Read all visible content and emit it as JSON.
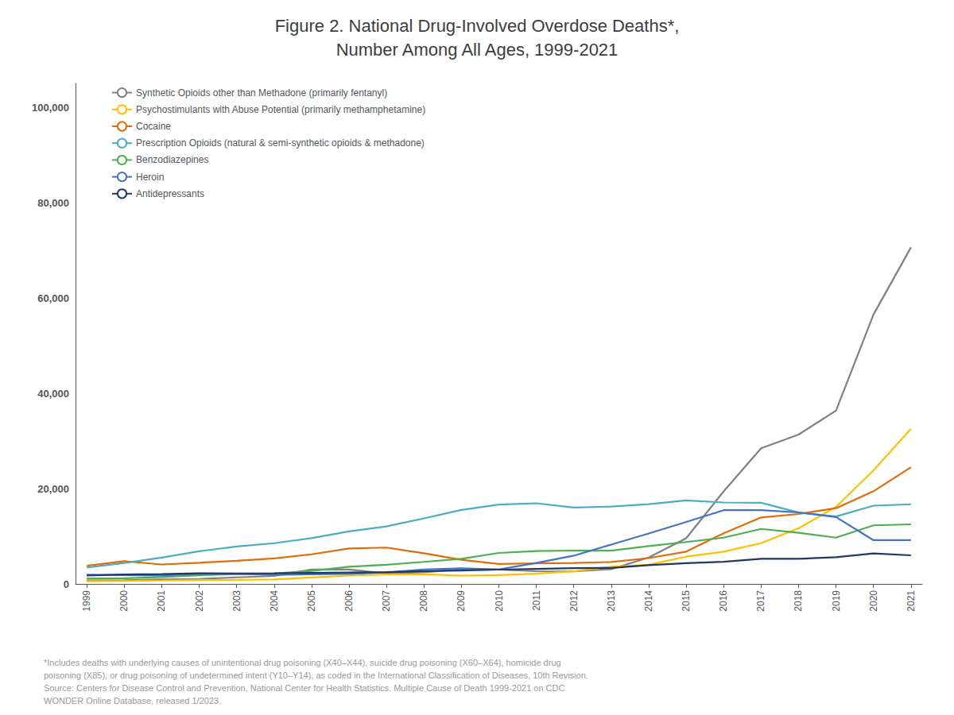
{
  "chart_data": {
    "type": "line",
    "title": "Figure 2. National Drug-Involved Overdose Deaths*,\nNumber Among All Ages, 1999-2021",
    "x": [
      1999,
      2000,
      2001,
      2002,
      2003,
      2004,
      2005,
      2006,
      2007,
      2008,
      2009,
      2010,
      2011,
      2012,
      2013,
      2014,
      2015,
      2016,
      2017,
      2018,
      2019,
      2020,
      2021
    ],
    "series": [
      {
        "name": "Synthetic Opioids other than Methadone (primarily fentanyl)",
        "color": "#808080",
        "values": [
          730,
          786,
          959,
          1038,
          1371,
          1666,
          3036,
          3007,
          2213,
          2446,
          3096,
          3007,
          2666,
          2628,
          3105,
          5544,
          9580,
          19413,
          28466,
          31335,
          36359,
          56516,
          70601
        ]
      },
      {
        "name": "Psychostimulants with Abuse Potential (primarily methamphetamine)",
        "color": "#FFC000",
        "values": [
          547,
          627,
          706,
          820,
          847,
          926,
          1344,
          1752,
          1981,
          2006,
          1752,
          1854,
          2136,
          2650,
          3627,
          4022,
          5716,
          6762,
          8544,
          11654,
          16167,
          23837,
          32537
        ]
      },
      {
        "name": "Cocaine",
        "color": "#E36C09",
        "values": [
          3822,
          4782,
          4085,
          4447,
          4864,
          5346,
          6208,
          7448,
          7624,
          6424,
          5055,
          4183,
          4327,
          4403,
          4607,
          5415,
          6784,
          10619,
          13942,
          14666,
          15883,
          19447,
          24486
        ]
      },
      {
        "name": "Prescription Opioids (natural & semi-synthetic opioids & methadone)",
        "color": "#4BACC6",
        "values": [
          3442,
          4400,
          5528,
          6845,
          7845,
          8541,
          9591,
          11011,
          12074,
          13756,
          15521,
          16651,
          16917,
          16007,
          16235,
          16736,
          17536,
          17087,
          17029,
          14975,
          14139,
          16416,
          16706
        ]
      },
      {
        "name": "Benzodiazepines",
        "color": "#4CAF50",
        "values": [
          1135,
          1199,
          1449,
          1812,
          2059,
          2201,
          2721,
          3619,
          4027,
          4625,
          5258,
          6497,
          6889,
          7002,
          6967,
          7945,
          8791,
          9711,
          11537,
          10724,
          9711,
          12290,
          12499
        ]
      },
      {
        "name": "Heroin",
        "color": "#4472C4",
        "values": [
          1960,
          1842,
          1779,
          2089,
          2080,
          1878,
          2009,
          2088,
          2399,
          3041,
          3278,
          3036,
          4397,
          5925,
          8257,
          10574,
          12989,
          15469,
          15482,
          14996,
          14019,
          9173,
          9173
        ]
      },
      {
        "name": "Antidepressants",
        "color": "#1F3864",
        "values": [
          1749,
          1990,
          2054,
          2231,
          2207,
          2235,
          2318,
          2396,
          2466,
          2681,
          2826,
          3001,
          3159,
          3304,
          3369,
          3923,
          4357,
          4649,
          5269,
          5269,
          5589,
          6399,
          6000
        ]
      }
    ],
    "xlim": [
      1998.7,
      2021.3
    ],
    "xticks": [
      1999,
      2000,
      2001,
      2002,
      2003,
      2004,
      2005,
      2006,
      2007,
      2008,
      2009,
      2010,
      2011,
      2012,
      2013,
      2014,
      2015,
      2016,
      2017,
      2018,
      2019,
      2020,
      2021
    ],
    "ylim": [
      0,
      105000
    ],
    "yticks": [
      0,
      {
        "value": 20000,
        "label": "20,000"
      },
      {
        "value": 40000,
        "label": "40,000"
      },
      {
        "value": 60000,
        "label": "60,000"
      },
      {
        "value": 80000,
        "label": "80,000"
      },
      {
        "value": 100000,
        "label": "100,000"
      }
    ],
    "footnote": "*Includes deaths with underlying causes of unintentional drug poisoning (X40–X44), suicide drug poisoning (X60–X64), homicide drug\npoisoning (X85), or drug poisoning of undetermined intent (Y10–Y14), as coded in the International Classification of Diseases, 10th Revision.\nSource: Centers for Disease Control and Prevention, National Center for Health Statistics. Multiple Cause of Death 1999-2021 on CDC\nWONDER Online Database, released 1/2023.",
    "grid": false,
    "legend": "upper left"
  }
}
